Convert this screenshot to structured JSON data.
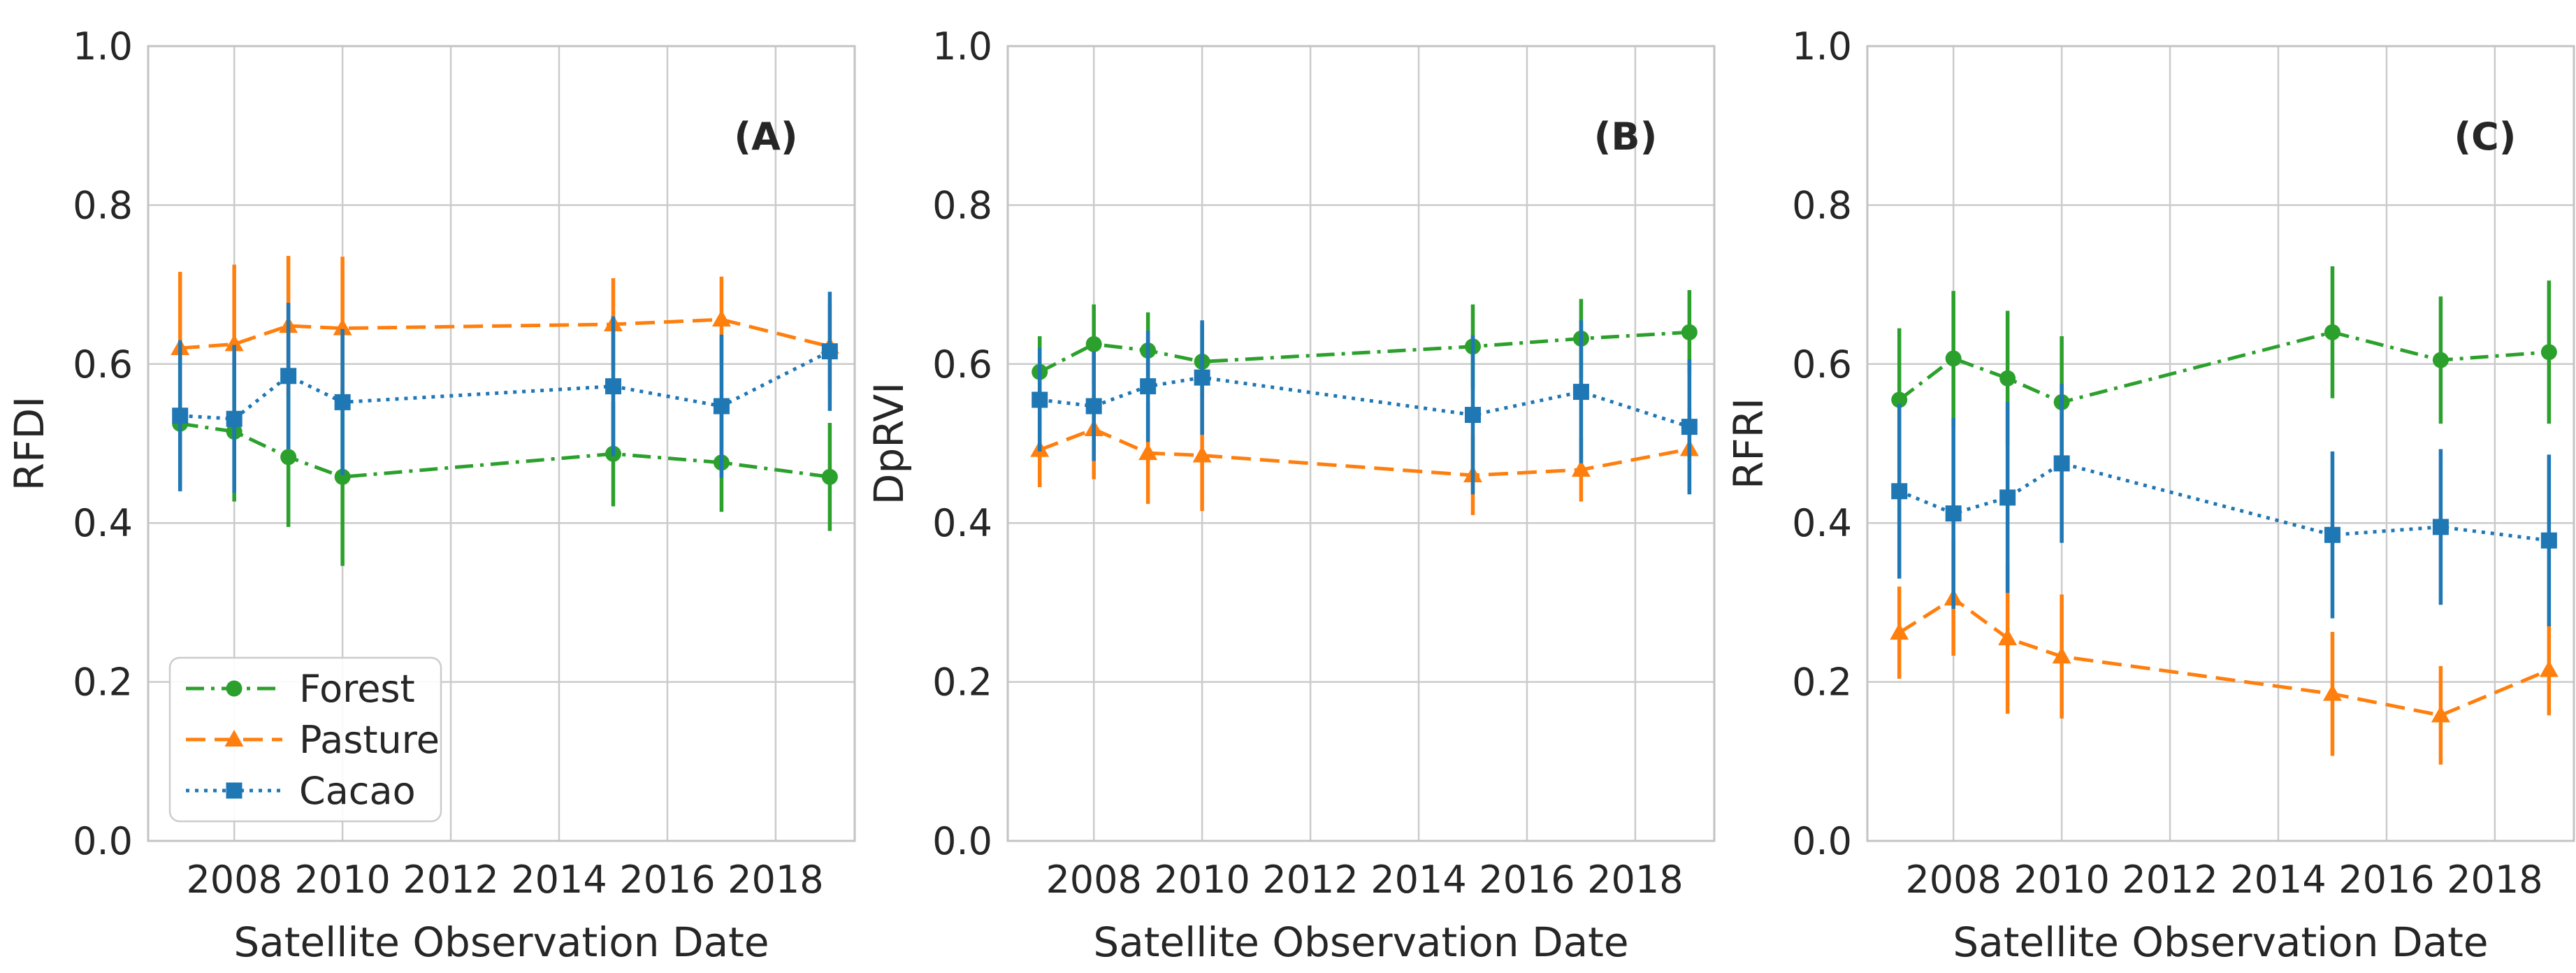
{
  "figure": {
    "xlabel": "Satellite Observation Date",
    "x_tick_labels": [
      "2008",
      "2010",
      "2012",
      "2014",
      "2016",
      "2018"
    ],
    "y_tick_labels": [
      "0.0",
      "0.2",
      "0.4",
      "0.6",
      "0.8",
      "1.0"
    ]
  },
  "legend": {
    "items": [
      {
        "label": "Forest"
      },
      {
        "label": "Pasture"
      },
      {
        "label": "Cacao"
      }
    ]
  },
  "series_styles": {
    "Forest": {
      "color": "#2ca02c",
      "marker": "circle",
      "linestyle": "dashdot"
    },
    "Pasture": {
      "color": "#ff7f0e",
      "marker": "triangle",
      "linestyle": "dashed"
    },
    "Cacao": {
      "color": "#1f77b4",
      "marker": "square",
      "linestyle": "dotted"
    }
  },
  "chart_data": [
    {
      "type": "line",
      "panel_label": "(A)",
      "ylabel": "RFDI",
      "xlabel": "Satellite Observation Date",
      "x": [
        2007,
        2008,
        2009,
        2010,
        2015,
        2017,
        2019
      ],
      "xticks": [
        2008,
        2010,
        2012,
        2014,
        2016,
        2018
      ],
      "yticks": [
        0.0,
        0.2,
        0.4,
        0.6,
        0.8,
        1.0
      ],
      "xlim": [
        2006.41,
        2019.46
      ],
      "ylim": [
        0,
        1
      ],
      "grid": true,
      "legend_position": "lower left",
      "series": [
        {
          "name": "Forest",
          "values": [
            0.525,
            0.515,
            0.483,
            0.458,
            0.487,
            0.476,
            0.458
          ],
          "yerr": [
            0.085,
            0.088,
            0.088,
            0.112,
            0.066,
            0.062,
            0.068
          ]
        },
        {
          "name": "Pasture",
          "values": [
            0.62,
            0.625,
            0.648,
            0.645,
            0.65,
            0.656,
            0.622
          ],
          "yerr": [
            0.096,
            0.1,
            0.088,
            0.09,
            0.058,
            0.054,
            0.055
          ]
        },
        {
          "name": "Cacao",
          "values": [
            0.535,
            0.531,
            0.585,
            0.552,
            0.572,
            0.547,
            0.616
          ],
          "yerr": [
            0.095,
            0.093,
            0.092,
            0.092,
            0.088,
            0.09,
            0.075
          ]
        }
      ]
    },
    {
      "type": "line",
      "panel_label": "(B)",
      "ylabel": "DpRVI",
      "xlabel": "Satellite Observation Date",
      "x": [
        2007,
        2008,
        2009,
        2010,
        2015,
        2017,
        2019
      ],
      "xticks": [
        2008,
        2010,
        2012,
        2014,
        2016,
        2018
      ],
      "yticks": [
        0.0,
        0.2,
        0.4,
        0.6,
        0.8,
        1.0
      ],
      "xlim": [
        2006.41,
        2019.46
      ],
      "ylim": [
        0,
        1
      ],
      "grid": true,
      "legend_position": "none",
      "series": [
        {
          "name": "Forest",
          "values": [
            0.59,
            0.625,
            0.617,
            0.603,
            0.622,
            0.632,
            0.64
          ],
          "yerr": [
            0.045,
            0.05,
            0.048,
            0.047,
            0.053,
            0.05,
            0.053
          ]
        },
        {
          "name": "Pasture",
          "values": [
            0.492,
            0.518,
            0.488,
            0.485,
            0.46,
            0.467,
            0.493
          ],
          "yerr": [
            0.047,
            0.063,
            0.064,
            0.07,
            0.05,
            0.04,
            0.053
          ]
        },
        {
          "name": "Cacao",
          "values": [
            0.555,
            0.547,
            0.572,
            0.583,
            0.536,
            0.565,
            0.521
          ],
          "yerr": [
            0.065,
            0.069,
            0.07,
            0.072,
            0.1,
            0.09,
            0.085
          ]
        }
      ]
    },
    {
      "type": "line",
      "panel_label": "(C)",
      "ylabel": "RFRI",
      "xlabel": "Satellite Observation Date",
      "x": [
        2007,
        2008,
        2009,
        2010,
        2015,
        2017,
        2019
      ],
      "xticks": [
        2008,
        2010,
        2012,
        2014,
        2016,
        2018
      ],
      "yticks": [
        0.0,
        0.2,
        0.4,
        0.6,
        0.8,
        1.0
      ],
      "xlim": [
        2006.41,
        2019.46
      ],
      "ylim": [
        0,
        1
      ],
      "grid": true,
      "legend_position": "none",
      "series": [
        {
          "name": "Forest",
          "values": [
            0.555,
            0.607,
            0.582,
            0.552,
            0.64,
            0.605,
            0.615
          ],
          "yerr": [
            0.09,
            0.085,
            0.085,
            0.083,
            0.083,
            0.08,
            0.09
          ]
        },
        {
          "name": "Pasture",
          "values": [
            0.262,
            0.305,
            0.255,
            0.232,
            0.185,
            0.158,
            0.215
          ],
          "yerr": [
            0.058,
            0.072,
            0.095,
            0.078,
            0.078,
            0.062,
            0.057
          ]
        },
        {
          "name": "Cacao",
          "values": [
            0.44,
            0.412,
            0.432,
            0.475,
            0.385,
            0.395,
            0.378
          ],
          "yerr": [
            0.11,
            0.12,
            0.12,
            0.1,
            0.105,
            0.098,
            0.108
          ]
        }
      ]
    }
  ]
}
